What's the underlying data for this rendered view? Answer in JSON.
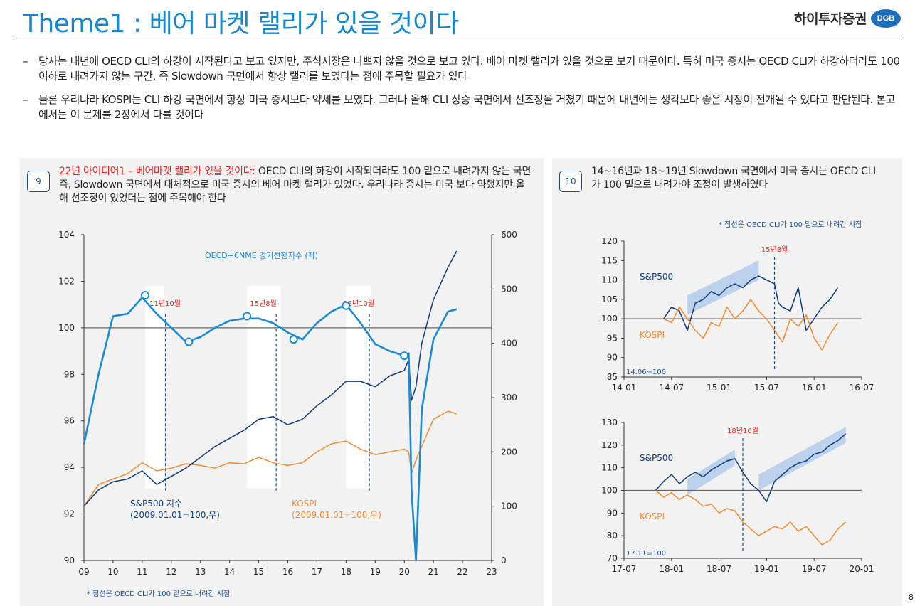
{
  "header": {
    "title": "Theme1 : 베어 마켓 랠리가 있을 것이다",
    "logo_text": "하이투자증권",
    "logo_badge": "DGB"
  },
  "bullets": [
    {
      "dash": "–",
      "text": "당사는 내년에 OECD CLI의 하강이 시작된다고 보고 있지만, 주식시장은 나쁘지 않을 것으로 보고 있다. 베어 마켓 랠리가 있을 것으로 보기 때문이다. 특히 미국 증시는 OECD CLI가 하강하더라도 100 이하로 내려가지 않는 구간, 즉 Slowdown 국면에서 항상 랠리를 보였다는 점에 주목할 필요가 있다"
    },
    {
      "dash": "–",
      "text": "물론 우리나라 KOSPI는 CLI 하강 국면에서 항상 미국 증시보다 약세를 보였다. 그러나 올해 CLI 상승 국면에서 선조정을 거쳤기 때문에 내년에는 생각보다 좋은 시장이 전개될 수 있다고 판단된다. 본고에서는 이 문제를 2장에서 다룰 것이다"
    }
  ],
  "panel_left": {
    "badge": "9",
    "desc_highlight": "22년 아이디어1 – 베어마켓 랠리가 있을 것이다:",
    "desc_rest": " OECD CLI의 하강이 시작되더라도 100 밑으로 내려가지 않는 국면 즉, Slowdown 국면에서 대체적으로 미국 증시의 베어 마켓 랠리가 있었다.  우리나라 증시는 미국 보다 약했지만 올해 선조정이 있었더는 점에 주목해야 한다",
    "footnote": "* 점선은 OECD CLI가 100 밑으로 내려간 시점"
  },
  "panel_right": {
    "badge": "10",
    "desc": "14~16년과 18~19년 Slowdown 국면에서 미국 증시는 OECD CLI가 100 밑으로 내려가야 조정이 발생하였다",
    "note": "* 점선은 OECD CLI가 100 밑으로 내려간 시점"
  },
  "page_number": "8",
  "colors": {
    "title_blue": "#1787d0",
    "cli": "#1a8ad4",
    "sp500": "#0e3a78",
    "kospi": "#f28b2f",
    "annotation_red": "#e0241c",
    "trend_band": "#a9c6ea"
  },
  "chart_data": [
    {
      "id": "main",
      "type": "line",
      "x": [
        2009.0,
        2009.5,
        2010.0,
        2010.5,
        2011.0,
        2011.5,
        2012.0,
        2012.5,
        2013.0,
        2013.5,
        2014.0,
        2014.5,
        2015.0,
        2015.5,
        2016.0,
        2016.5,
        2017.0,
        2017.5,
        2018.0,
        2018.5,
        2019.0,
        2019.5,
        2020.0,
        2020.15,
        2020.25,
        2020.4,
        2020.6,
        2021.0,
        2021.5,
        2021.8
      ],
      "xticks": [
        "09",
        "10",
        "11",
        "12",
        "13",
        "14",
        "15",
        "16",
        "17",
        "18",
        "19",
        "20",
        "21",
        "22",
        "23"
      ],
      "xlim": [
        2009,
        2023
      ],
      "ylim_left": [
        90,
        104
      ],
      "yticks_left": [
        104,
        102,
        100,
        98,
        96,
        94,
        92,
        90
      ],
      "ylim_right": [
        0,
        600
      ],
      "yticks_right": [
        600,
        500,
        400,
        300,
        200,
        100,
        0
      ],
      "series": [
        {
          "name": "OECD+6NME 경기선행지수 (좌)",
          "axis": "left",
          "values": [
            95.0,
            98.0,
            100.5,
            100.6,
            101.3,
            100.6,
            100.0,
            99.4,
            99.6,
            100.0,
            100.3,
            100.4,
            100.4,
            100.2,
            99.8,
            99.5,
            100.2,
            100.7,
            101.0,
            100.2,
            99.3,
            99.0,
            98.8,
            98.9,
            93.0,
            90.0,
            96.5,
            99.5,
            100.7,
            100.8
          ]
        },
        {
          "name": "S&P500 지수 (2009.01.01=100,우)",
          "axis": "right",
          "values": [
            100,
            130,
            145,
            150,
            165,
            140,
            155,
            170,
            190,
            210,
            225,
            240,
            260,
            265,
            250,
            260,
            285,
            305,
            330,
            330,
            320,
            340,
            350,
            370,
            295,
            320,
            400,
            480,
            540,
            570
          ]
        },
        {
          "name": "KOSPI (2009.01.01=100,우)",
          "axis": "right",
          "values": [
            100,
            140,
            150,
            160,
            180,
            165,
            170,
            178,
            175,
            170,
            180,
            178,
            190,
            180,
            175,
            180,
            200,
            215,
            220,
            205,
            195,
            200,
            205,
            200,
            160,
            185,
            210,
            260,
            275,
            270
          ]
        }
      ],
      "annotations": [
        {
          "label": "11년10월",
          "x": 2011.8
        },
        {
          "label": "15년8월",
          "x": 2015.6
        },
        {
          "label": "18년10월",
          "x": 2018.8
        }
      ],
      "shaded_ranges": [
        [
          2011.1,
          2011.75
        ],
        [
          2014.6,
          2015.75
        ],
        [
          2018.0,
          2018.85
        ]
      ],
      "circle_markers": [
        {
          "x": 2011.1,
          "y": 101.4
        },
        {
          "x": 2012.6,
          "y": 99.4
        },
        {
          "x": 2014.6,
          "y": 100.5
        },
        {
          "x": 2016.2,
          "y": 99.5
        },
        {
          "x": 2018.0,
          "y": 100.95
        },
        {
          "x": 2020.0,
          "y": 98.8
        }
      ]
    },
    {
      "id": "top-right",
      "type": "line",
      "xticks": [
        "14-01",
        "14-07",
        "15-01",
        "15-07",
        "16-01",
        "16-07"
      ],
      "xlim": [
        0,
        30
      ],
      "ylim": [
        85,
        120
      ],
      "yticks": [
        120,
        115,
        110,
        105,
        100,
        95,
        90,
        85
      ],
      "base_label": "14.06=100",
      "annotation": {
        "label": "15년8월",
        "x": 19
      },
      "series": [
        {
          "name": "S&P500",
          "x": [
            5,
            6,
            7,
            8,
            9,
            10,
            11,
            12,
            13,
            14,
            15,
            16,
            17,
            18,
            19,
            19.5,
            20,
            21,
            22,
            23,
            24,
            25,
            26,
            27
          ],
          "values": [
            100,
            103,
            102,
            97,
            104,
            105,
            107,
            106,
            108,
            109,
            108,
            110,
            111,
            110,
            109,
            104,
            103,
            102,
            108,
            97,
            100,
            103,
            105,
            108
          ]
        },
        {
          "name": "KOSPI",
          "x": [
            5,
            6,
            7,
            8,
            9,
            10,
            11,
            12,
            13,
            14,
            15,
            16,
            17,
            18,
            19,
            20,
            21,
            22,
            23,
            24,
            25,
            26,
            27
          ],
          "values": [
            100,
            99,
            103,
            100,
            97,
            95,
            99,
            98,
            103,
            100,
            102,
            105,
            102,
            100,
            97,
            94,
            100,
            98,
            101,
            95,
            92,
            96,
            99
          ]
        }
      ]
    },
    {
      "id": "bottom-right",
      "type": "line",
      "xticks": [
        "17-07",
        "18-01",
        "18-07",
        "19-01",
        "19-07",
        "20-01"
      ],
      "xlim": [
        0,
        30
      ],
      "ylim": [
        70,
        130
      ],
      "yticks": [
        130,
        120,
        110,
        100,
        90,
        80,
        70
      ],
      "base_label": "17.11=100",
      "annotation": {
        "label": "18년10월",
        "x": 15
      },
      "series": [
        {
          "name": "S&P500",
          "x": [
            4,
            5,
            6,
            7,
            8,
            9,
            10,
            11,
            12,
            13,
            14,
            15,
            16,
            17,
            18,
            19,
            20,
            21,
            22,
            23,
            24,
            25,
            26,
            27,
            28
          ],
          "values": [
            100,
            104,
            107,
            103,
            106,
            108,
            106,
            109,
            111,
            113,
            114,
            108,
            103,
            100,
            95,
            104,
            107,
            110,
            112,
            113,
            116,
            117,
            120,
            122,
            125
          ]
        },
        {
          "name": "KOSPI",
          "x": [
            4,
            5,
            6,
            7,
            8,
            9,
            10,
            11,
            12,
            13,
            14,
            15,
            16,
            17,
            18,
            19,
            20,
            21,
            22,
            23,
            24,
            25,
            26,
            27,
            28
          ],
          "values": [
            100,
            97,
            99,
            96,
            98,
            96,
            93,
            94,
            90,
            92,
            91,
            86,
            83,
            80,
            82,
            84,
            83,
            86,
            82,
            84,
            80,
            76,
            78,
            83,
            86
          ]
        }
      ]
    }
  ]
}
